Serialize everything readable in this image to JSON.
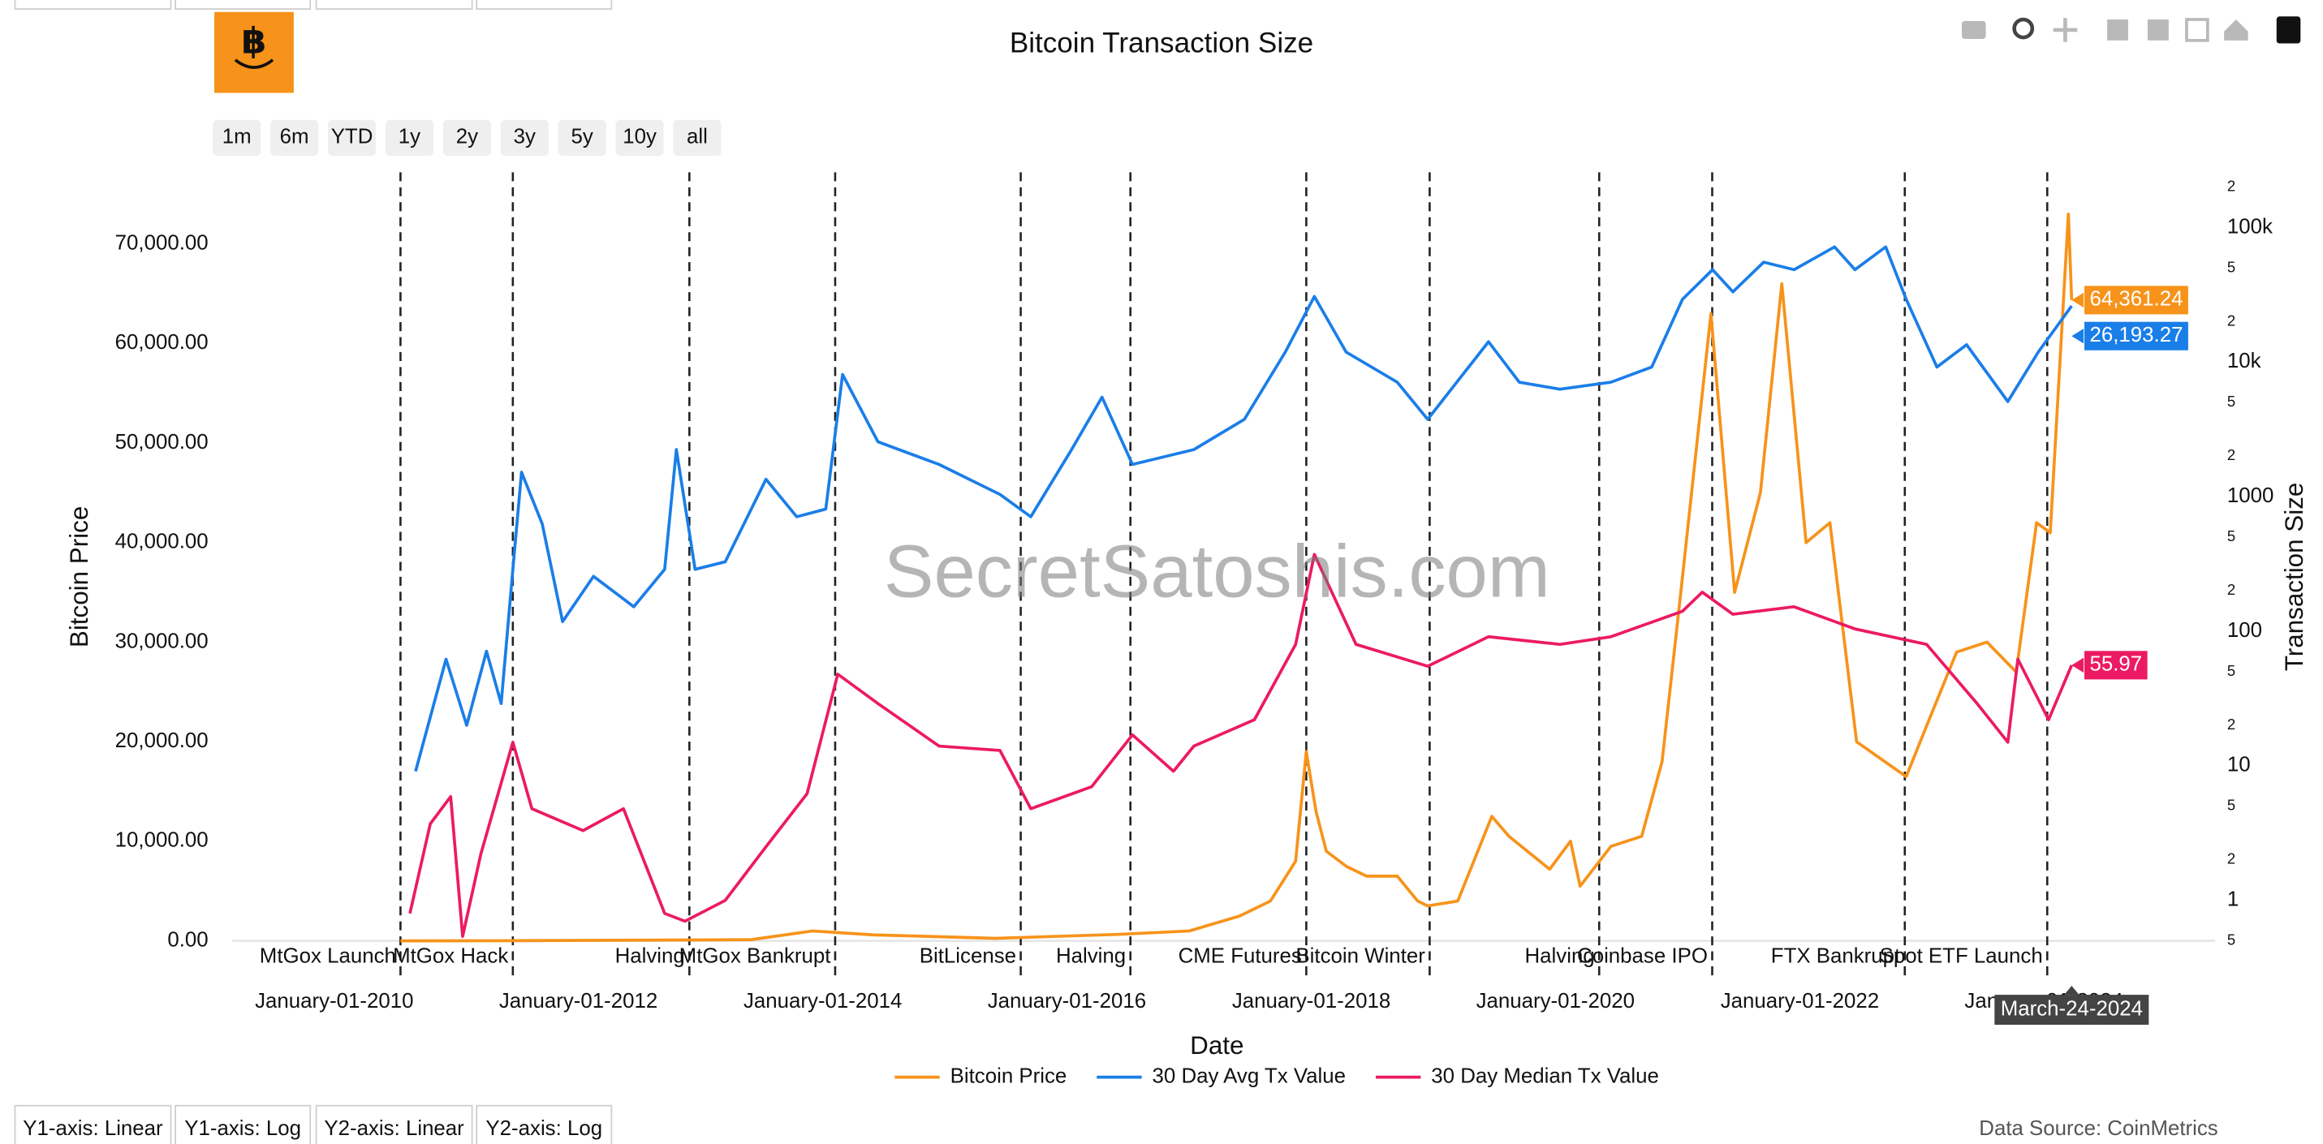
{
  "watermark": "SecretSatoshis.com",
  "data_source": "Data Source: CoinMetrics",
  "range_buttons": [
    "1m",
    "6m",
    "YTD",
    "1y",
    "2y",
    "3y",
    "5y",
    "10y",
    "all"
  ],
  "axis_buttons": [
    "Y1-axis: Linear",
    "Y1-axis: Log",
    "Y2-axis: Linear",
    "Y2-axis: Log"
  ],
  "chart_data": {
    "type": "line",
    "title": "Bitcoin Transaction Size",
    "x_label": "Date",
    "y_label": "Bitcoin Price",
    "y2_label": "Transaction Size",
    "xlim": [
      "2009-03-02",
      "2025-05-27"
    ],
    "xticks": [
      {
        "value": "2010-01-01",
        "label": "January-01-2010"
      },
      {
        "value": "2012-01-01",
        "label": "January-01-2012"
      },
      {
        "value": "2014-01-01",
        "label": "January-01-2014"
      },
      {
        "value": "2016-01-01",
        "label": "January-01-2016"
      },
      {
        "value": "2018-01-01",
        "label": "January-01-2018"
      },
      {
        "value": "2020-01-01",
        "label": "January-01-2020"
      },
      {
        "value": "2022-01-01",
        "label": "January-01-2022"
      },
      {
        "value": "2024-01-01",
        "label": "January-01-2024"
      }
    ],
    "ylim": [
      0,
      77200
    ],
    "yticks": [
      {
        "value": 0,
        "label": "0.00"
      },
      {
        "value": 10000,
        "label": "10,000.00"
      },
      {
        "value": 20000,
        "label": "20,000.00"
      },
      {
        "value": 30000,
        "label": "30,000.00"
      },
      {
        "value": 40000,
        "label": "40,000.00"
      },
      {
        "value": 50000,
        "label": "50,000.00"
      },
      {
        "value": 60000,
        "label": "60,000.00"
      },
      {
        "value": 70000,
        "label": "70,000.00"
      }
    ],
    "y2lim": [
      0.5,
      258000
    ],
    "y2_log": true,
    "y2ticks": [
      {
        "value": 0.5,
        "label": "5"
      },
      1,
      {
        "value": 2,
        "label": "2"
      },
      {
        "value": 5,
        "label": "5"
      },
      10,
      {
        "value": 20,
        "label": "2"
      },
      {
        "value": 50,
        "label": "5"
      },
      100,
      {
        "value": 200,
        "label": "2"
      },
      {
        "value": 500,
        "label": "5"
      },
      1000,
      {
        "value": 2000,
        "label": "2"
      },
      {
        "value": 5000,
        "label": "5"
      },
      {
        "value": 10000,
        "label": "10k"
      },
      {
        "value": 20000,
        "label": "2"
      },
      {
        "value": 50000,
        "label": "5"
      },
      {
        "value": 100000,
        "label": "100k"
      },
      {
        "value": 200000,
        "label": "2"
      }
    ],
    "legend": "bottom",
    "events": [
      {
        "x": "2010-07-18",
        "label": "MtGox Launch"
      },
      {
        "x": "2011-06-19",
        "label": "MtGox Hack"
      },
      {
        "x": "2012-11-28",
        "label": "Halving"
      },
      {
        "x": "2014-02-07",
        "label": "MtGox Bankrupt"
      },
      {
        "x": "2015-08-16",
        "label": "BitLicense"
      },
      {
        "x": "2016-07-09",
        "label": "Halving"
      },
      {
        "x": "2017-12-17",
        "label": "CME Futures"
      },
      {
        "x": "2018-12-21",
        "label": "Bitcoin Winter"
      },
      {
        "x": "2020-05-11",
        "label": "Halving"
      },
      {
        "x": "2021-04-14",
        "label": "Coinbase IPO"
      },
      {
        "x": "2022-11-11",
        "label": "FTX Bankrupt"
      },
      {
        "x": "2024-01-11",
        "label": "Spot ETF Launch"
      }
    ],
    "hover": {
      "x": "2024-03-24",
      "label": "March-24-2024"
    },
    "series": [
      {
        "name": "Bitcoin Price",
        "color": "#f7931a",
        "axis": "y",
        "x": [
          "2010-07-18",
          "2011-06-15",
          "2013-06-01",
          "2013-12-01",
          "2014-06-01",
          "2015-06-01",
          "2016-06-01",
          "2017-01-01",
          "2017-06-01",
          "2017-09-01",
          "2017-11-15",
          "2017-12-17",
          "2018-01-15",
          "2018-02-15",
          "2018-04-15",
          "2018-06-15",
          "2018-09-15",
          "2018-11-15",
          "2018-12-15",
          "2019-03-15",
          "2019-06-25",
          "2019-08-15",
          "2019-12-15",
          "2020-02-15",
          "2020-03-15",
          "2020-06-15",
          "2020-09-15",
          "2020-11-15",
          "2021-01-10",
          "2021-04-10",
          "2021-06-20",
          "2021-09-05",
          "2021-11-08",
          "2022-01-20",
          "2022-04-01",
          "2022-06-20",
          "2022-11-15",
          "2023-01-20",
          "2023-04-15",
          "2023-07-15",
          "2023-10-10",
          "2023-12-10",
          "2024-01-20",
          "2024-03-14",
          "2024-03-24"
        ],
        "values": [
          0,
          15,
          120,
          1000,
          600,
          250,
          650,
          1000,
          2500,
          4000,
          8000,
          19000,
          13000,
          9000,
          7500,
          6500,
          6500,
          4000,
          3500,
          4000,
          12500,
          10500,
          7200,
          10000,
          5500,
          9500,
          10500,
          18000,
          35000,
          63000,
          35000,
          45000,
          66000,
          40000,
          42000,
          20000,
          16500,
          22000,
          29000,
          30000,
          27000,
          42000,
          41000,
          73000,
          64361.24
        ],
        "hover_label": "64,361.24"
      },
      {
        "name": "30 Day Avg Tx Value",
        "color": "#1a7ee8",
        "axis": "y2",
        "x": [
          "2010-09-01",
          "2010-12-01",
          "2011-02-01",
          "2011-04-01",
          "2011-05-15",
          "2011-06-19",
          "2011-07-15",
          "2011-09-15",
          "2011-11-15",
          "2012-02-15",
          "2012-06-15",
          "2012-09-15",
          "2012-10-20",
          "2012-12-15",
          "2013-03-15",
          "2013-07-15",
          "2013-10-15",
          "2014-01-10",
          "2014-03-01",
          "2014-06-15",
          "2014-12-15",
          "2015-06-15",
          "2015-09-15",
          "2016-01-15",
          "2016-04-15",
          "2016-07-15",
          "2017-01-15",
          "2017-06-15",
          "2017-10-15",
          "2018-01-10",
          "2018-04-15",
          "2018-09-15",
          "2018-12-15",
          "2019-06-15",
          "2019-09-15",
          "2020-01-15",
          "2020-06-15",
          "2020-10-15",
          "2021-01-15",
          "2021-04-15",
          "2021-06-15",
          "2021-09-15",
          "2021-12-15",
          "2022-04-15",
          "2022-06-15",
          "2022-09-15",
          "2022-11-15",
          "2023-02-15",
          "2023-05-15",
          "2023-09-15",
          "2023-12-15",
          "2024-03-24"
        ],
        "values": [
          9.1,
          62,
          20,
          71,
          29,
          289,
          1520,
          628,
          118,
          256,
          152,
          289,
          2240,
          289,
          328,
          1350,
          710,
          810,
          8100,
          2560,
          1740,
          1040,
          710,
          2240,
          5500,
          1740,
          2240,
          3760,
          11900,
          30800,
          11900,
          7100,
          3760,
          14200,
          7100,
          6300,
          7100,
          9200,
          29300,
          48700,
          33300,
          55400,
          48700,
          71900,
          48700,
          71900,
          29300,
          9200,
          13500,
          5100,
          11900,
          26193.27
        ],
        "hover_label": "26,193.27"
      },
      {
        "name": "30 Day Median Tx Value",
        "color": "#ec1a63",
        "axis": "y2",
        "x": [
          "2010-08-15",
          "2010-10-15",
          "2010-12-15",
          "2011-01-20",
          "2011-03-15",
          "2011-06-19",
          "2011-08-15",
          "2012-01-15",
          "2012-05-15",
          "2012-09-15",
          "2012-11-15",
          "2013-03-15",
          "2013-07-15",
          "2013-11-15",
          "2014-02-15",
          "2014-06-15",
          "2014-12-15",
          "2015-06-15",
          "2015-09-15",
          "2016-03-15",
          "2016-07-15",
          "2016-11-15",
          "2017-01-15",
          "2017-07-15",
          "2017-11-15",
          "2018-01-10",
          "2018-05-15",
          "2018-12-15",
          "2019-06-15",
          "2020-01-15",
          "2020-06-15",
          "2021-01-15",
          "2021-03-15",
          "2021-06-15",
          "2021-12-15",
          "2022-06-15",
          "2023-01-15",
          "2023-06-15",
          "2023-09-15",
          "2023-10-15",
          "2024-01-15",
          "2024-03-24"
        ],
        "values": [
          0.8,
          3.7,
          5.9,
          0.54,
          2.2,
          15,
          4.8,
          3.3,
          4.8,
          0.8,
          0.7,
          1.0,
          2.5,
          6.2,
          48,
          29,
          14,
          13,
          4.8,
          7.0,
          17,
          9.1,
          14,
          22,
          80,
          372,
          80,
          55,
          91,
          80,
          91,
          141,
          195,
          134,
          152,
          104,
          80,
          29,
          15,
          62,
          22,
          55.97
        ],
        "hover_label": "55.97"
      }
    ]
  }
}
